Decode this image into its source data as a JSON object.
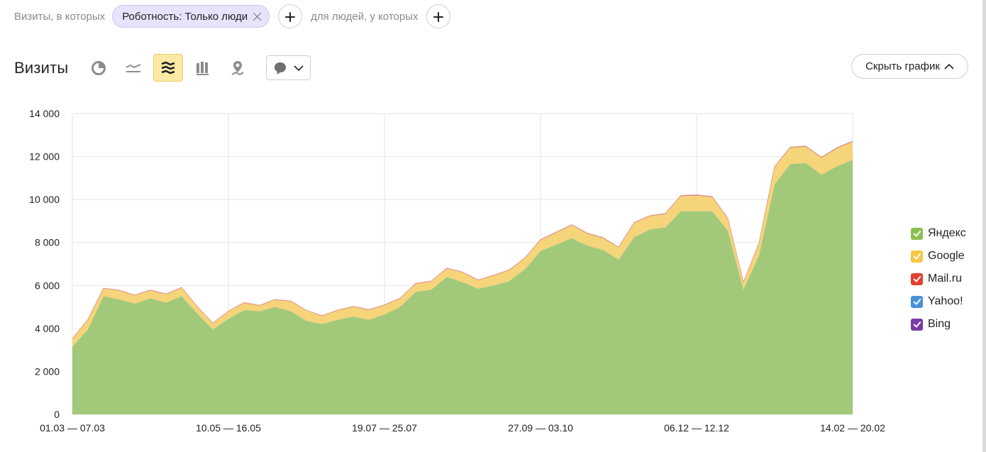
{
  "filter_bar": {
    "prefix": "Визиты, в которых",
    "chip_label": "Роботность: Только люди",
    "second_text": "для людей, у которых"
  },
  "header": {
    "title": "Визиты",
    "hide_chart_label": "Скрыть график"
  },
  "toolbar": {
    "tools": [
      {
        "name": "pie-chart-icon",
        "active": false
      },
      {
        "name": "line-chart-icon",
        "active": false
      },
      {
        "name": "area-stacked-icon",
        "active": true
      },
      {
        "name": "bar-chart-icon",
        "active": false
      },
      {
        "name": "map-icon",
        "active": false
      }
    ],
    "dropdown_icon": "comment-icon"
  },
  "colors": {
    "accent_active": "#fce9a4",
    "chip_bg": "#e6e4fb"
  },
  "chart_data": {
    "type": "area",
    "stacked": true,
    "title": "",
    "xlabel": "",
    "ylabel": "",
    "ylim": [
      0,
      14000
    ],
    "yticks": [
      0,
      2000,
      4000,
      6000,
      8000,
      10000,
      12000,
      14000
    ],
    "ytick_labels": [
      "0",
      "2 000",
      "4 000",
      "6 000",
      "8 000",
      "10 000",
      "12 000",
      "14 000"
    ],
    "x_count": 51,
    "x_tick_indices": [
      0,
      10,
      20,
      30,
      40,
      50
    ],
    "x_tick_labels": [
      "01.03 — 07.03",
      "10.05 — 16.05",
      "19.07 — 25.07",
      "27.09 — 03.10",
      "06.12 — 12.12",
      "14.02 — 20.02"
    ],
    "grid": true,
    "legend_position": "right",
    "series": [
      {
        "name": "Яндекс",
        "color": "#a2c97a",
        "legend_color": "#8bbf52",
        "values": [
          3150,
          3950,
          5500,
          5350,
          5150,
          5400,
          5200,
          5500,
          4700,
          3950,
          4450,
          4850,
          4800,
          5000,
          4800,
          4350,
          4200,
          4400,
          4550,
          4400,
          4650,
          5000,
          5700,
          5800,
          6400,
          6150,
          5850,
          6000,
          6200,
          6750,
          7600,
          7900,
          8200,
          7850,
          7650,
          7200,
          8250,
          8600,
          8700,
          9450,
          9450,
          9450,
          8550,
          5800,
          7400,
          10700,
          11650,
          11700,
          11150,
          11550,
          11850
        ]
      },
      {
        "name": "Google",
        "color": "#f6d47a",
        "legend_color": "#f6c744",
        "values": [
          350,
          450,
          350,
          400,
          380,
          360,
          380,
          380,
          300,
          280,
          330,
          330,
          250,
          320,
          450,
          470,
          370,
          430,
          450,
          450,
          420,
          380,
          370,
          380,
          380,
          450,
          380,
          450,
          500,
          500,
          500,
          550,
          600,
          550,
          550,
          550,
          650,
          620,
          620,
          700,
          730,
          650,
          550,
          320,
          550,
          800,
          750,
          750,
          780,
          830,
          830
        ]
      },
      {
        "name": "Mail.ru",
        "color": "#e07a7a",
        "legend_color": "#e4402e",
        "values": [
          15,
          15,
          20,
          20,
          20,
          20,
          20,
          20,
          15,
          15,
          15,
          20,
          20,
          20,
          20,
          15,
          15,
          15,
          20,
          20,
          20,
          20,
          20,
          20,
          20,
          20,
          20,
          20,
          20,
          25,
          25,
          25,
          25,
          25,
          25,
          25,
          25,
          25,
          25,
          30,
          30,
          30,
          25,
          20,
          25,
          30,
          30,
          30,
          30,
          30,
          30
        ]
      },
      {
        "name": "Yahoo!",
        "color": "#7fb3e6",
        "legend_color": "#4a90d9",
        "values": [
          3,
          3,
          3,
          3,
          3,
          3,
          3,
          3,
          3,
          3,
          3,
          3,
          3,
          3,
          3,
          3,
          3,
          3,
          3,
          3,
          3,
          3,
          3,
          3,
          3,
          3,
          3,
          3,
          3,
          3,
          3,
          3,
          3,
          3,
          3,
          3,
          3,
          3,
          3,
          3,
          3,
          3,
          3,
          3,
          3,
          3,
          3,
          3,
          3,
          3,
          3
        ]
      },
      {
        "name": "Bing",
        "color": "#8e5bb0",
        "legend_color": "#7b3aa5",
        "values": [
          5,
          5,
          5,
          5,
          5,
          5,
          5,
          5,
          5,
          5,
          5,
          5,
          5,
          5,
          5,
          5,
          5,
          5,
          5,
          5,
          5,
          5,
          5,
          5,
          5,
          5,
          5,
          5,
          5,
          5,
          5,
          5,
          5,
          5,
          5,
          5,
          5,
          5,
          5,
          5,
          5,
          5,
          5,
          5,
          5,
          5,
          5,
          5,
          5,
          5,
          5
        ]
      }
    ]
  }
}
